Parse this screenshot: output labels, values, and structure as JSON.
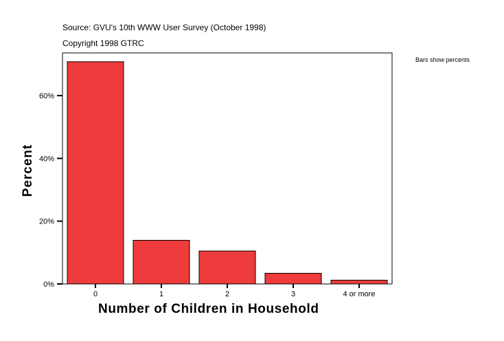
{
  "header": {
    "source": "Source: GVU's 10th WWW User Survey (October 1998)",
    "copyright": "Copyright 1998 GTRC"
  },
  "chart_data": {
    "type": "bar",
    "categories": [
      "0",
      "1",
      "2",
      "3",
      "4 or more"
    ],
    "values": [
      70.8,
      13.9,
      10.5,
      3.4,
      1.2
    ],
    "xlabel": "Number of Children in Household",
    "ylabel": "Percent",
    "ylim": [
      0,
      73.6
    ],
    "yticks": [
      0,
      20,
      40,
      60
    ],
    "ytick_labels": [
      "0%",
      "20%",
      "40%",
      "60%"
    ],
    "annotation": "Bars show percents",
    "bar_color": "#EE3B3B",
    "grid": false
  }
}
